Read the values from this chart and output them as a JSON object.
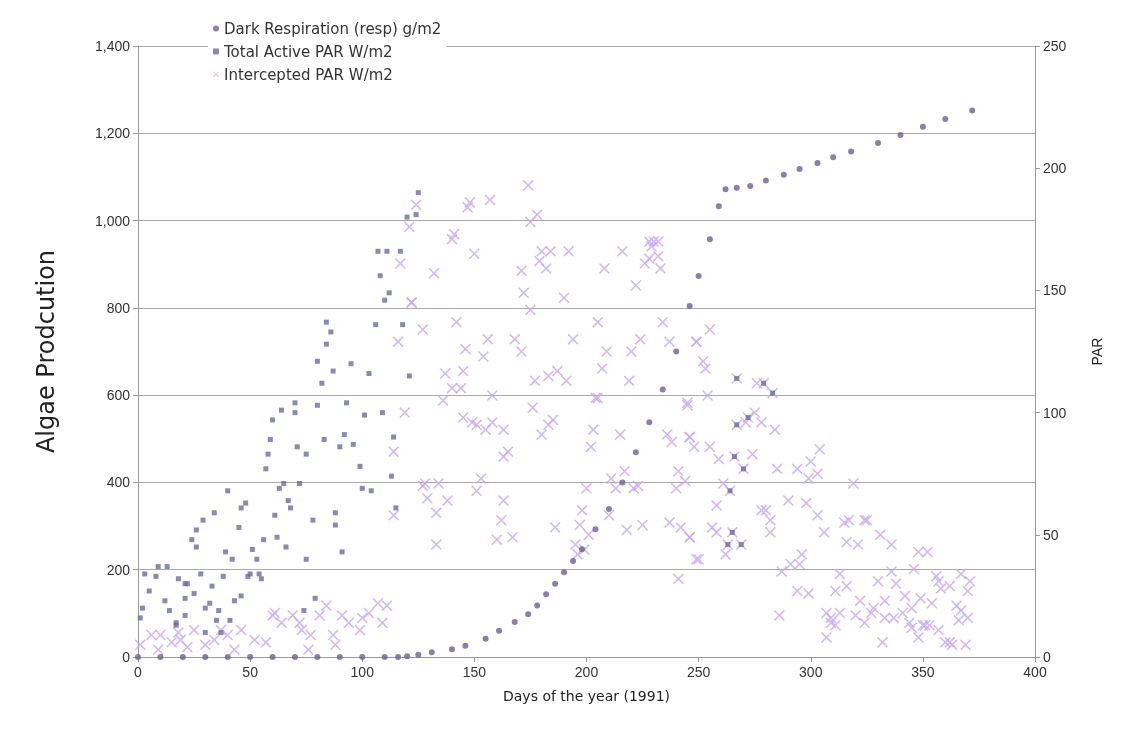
{
  "chart_data": {
    "type": "scatter",
    "xlabel": "Days of the year (1991)",
    "ylabel": "Algae Prodcution",
    "y2label": "PAR",
    "xlim": [
      0,
      400
    ],
    "xticks": [
      0,
      50,
      100,
      150,
      200,
      250,
      300,
      350,
      400
    ],
    "ylim": [
      0,
      1400
    ],
    "yticks": [
      0,
      200,
      400,
      600,
      800,
      {
        "value": 1000,
        "label": "1,000"
      },
      {
        "value": 1200,
        "label": "1,200"
      },
      {
        "value": 1400,
        "label": "1,400"
      }
    ],
    "y2lim": [
      0,
      250
    ],
    "y2ticks": [
      0,
      50,
      100,
      150,
      200,
      250
    ],
    "grid": "y",
    "legend": "top left",
    "series": [
      {
        "name": "Dark Respiration (resp) g/m2",
        "color": "#6e5f93",
        "marker": "circle",
        "x": [
          0,
          10,
          20,
          30,
          40,
          50,
          60,
          70,
          80,
          90,
          100,
          110,
          116,
          120,
          125,
          131,
          140,
          146,
          155,
          161,
          168,
          174,
          178,
          182,
          186,
          190,
          194,
          198,
          204,
          210,
          216,
          222,
          228,
          234,
          240,
          246,
          250,
          255,
          259,
          262,
          267,
          273,
          280,
          288,
          295,
          303,
          310,
          318,
          330,
          340,
          350,
          360,
          372
        ],
        "values": [
          0,
          0,
          0,
          0,
          0,
          0,
          0,
          0,
          0,
          0,
          0,
          0,
          0,
          2,
          5,
          11,
          18,
          26,
          42,
          60,
          80,
          98,
          118,
          144,
          168,
          194,
          220,
          247,
          293,
          339,
          400,
          469,
          538,
          613,
          700,
          804,
          873,
          957,
          1033,
          1072,
          1075,
          1079,
          1092,
          1105,
          1118,
          1132,
          1145,
          1158,
          1178,
          1196,
          1215,
          1233,
          1252
        ]
      },
      {
        "name": "Total Active PAR W/m2",
        "color": "#6b6b9f",
        "marker": "square",
        "axis": "y2",
        "x": [
          125,
          120,
          124,
          107,
          111,
          117,
          108,
          110,
          112,
          84,
          86,
          84,
          80,
          87,
          82,
          106,
          118,
          95,
          103,
          121,
          70,
          64,
          60,
          80,
          93,
          109,
          101,
          59,
          58,
          57,
          70,
          83,
          92,
          90,
          96,
          71,
          75,
          99,
          114,
          113,
          40,
          65,
          63,
          72,
          100,
          104,
          34,
          29,
          26,
          24,
          26,
          48,
          46,
          45,
          67,
          68,
          61,
          56,
          62,
          66,
          51,
          53,
          39,
          42,
          78,
          88,
          88,
          91,
          75,
          115,
          3,
          8,
          9,
          13,
          5,
          2,
          1,
          12,
          14,
          18,
          21,
          22,
          25,
          21,
          28,
          33,
          38,
          32,
          30,
          36,
          35,
          21,
          17,
          17,
          43,
          46,
          49,
          50,
          54,
          55,
          74,
          79,
          41,
          30,
          37,
          267,
          279,
          283,
          267,
          272,
          266,
          270,
          264,
          265,
          263,
          269
        ],
        "values": [
          190,
          180,
          181,
          166,
          166,
          166,
          156,
          146,
          149,
          137,
          133,
          128,
          121,
          117,
          112,
          136,
          136,
          120,
          116,
          115,
          104,
          101,
          97,
          103,
          104,
          100,
          99,
          89,
          83,
          77,
          100,
          89,
          91,
          86,
          87,
          86,
          83,
          78,
          90,
          74,
          68,
          71,
          69,
          71,
          69,
          68,
          59,
          56,
          52,
          48,
          45,
          63,
          61,
          53,
          64,
          61,
          58,
          48,
          49,
          45,
          44,
          40,
          43,
          40,
          56,
          59,
          54,
          43,
          40,
          61,
          34,
          33,
          37,
          37,
          27,
          20,
          16,
          23,
          19,
          32,
          30,
          30,
          26,
          24,
          34,
          29,
          33,
          22,
          20,
          19,
          15,
          17,
          14,
          13,
          23,
          25,
          33,
          34,
          34,
          32,
          19,
          24,
          15,
          10,
          10,
          114,
          112,
          108,
          95,
          98,
          82,
          77,
          68,
          51,
          46,
          46
        ]
      },
      {
        "name": "Intercepted PAR W/m2",
        "color": "#c7a6f2",
        "marker": "cross",
        "axis": "y2",
        "x": [
          1,
          6,
          10,
          15,
          19,
          25,
          30,
          34,
          40,
          46,
          52,
          57,
          60,
          64,
          69,
          73,
          76,
          77,
          81,
          84,
          87,
          91,
          94,
          99,
          100,
          103,
          107,
          111,
          109,
          88,
          72,
          43,
          22,
          9,
          61,
          37,
          18,
          116,
          119,
          114,
          114,
          122,
          117,
          121,
          124,
          127,
          127,
          174,
          147,
          148,
          157,
          178,
          175,
          141,
          140,
          150,
          180,
          184,
          192,
          179,
          182,
          171,
          172,
          190,
          175,
          132,
          122,
          216,
          208,
          222,
          228,
          230,
          232,
          229,
          228,
          226,
          232,
          233,
          142,
          205,
          234,
          156,
          146,
          154,
          168,
          171,
          194,
          209,
          220,
          224,
          237,
          207,
          219,
          177,
          183,
          187,
          191,
          137,
          145,
          140,
          144,
          136,
          158,
          176,
          204,
          205,
          145,
          149,
          151,
          155,
          158,
          163,
          180,
          183,
          185,
          203,
          202,
          215,
          236,
          238,
          245,
          246,
          249,
          165,
          163,
          153,
          217,
          211,
          213,
          223,
          221,
          200,
          151,
          128,
          134,
          129,
          138,
          133,
          163,
          162,
          167,
          160,
          133,
          186,
          198,
          197,
          195,
          201,
          210,
          218,
          225,
          237,
          242,
          246,
          241,
          240,
          244,
          241,
          249,
          196,
          199,
          255,
          249,
          252,
          253,
          254,
          245,
          267,
          276,
          279,
          283,
          275,
          272,
          271,
          267,
          278,
          284,
          246,
          248,
          255,
          259,
          266,
          274,
          270,
          304,
          285,
          294,
          300,
          299,
          303,
          261,
          319,
          264,
          258,
          290,
          298,
          278,
          280,
          282,
          303,
          282,
          306,
          315,
          317,
          324,
          325,
          256,
          258,
          246,
          265,
          263,
          269,
          262,
          316,
          321,
          331,
          336,
          348,
          352,
          250,
          296,
          287,
          291,
          295,
          313,
          336,
          346,
          330,
          338,
          356,
          357,
          367,
          371,
          358,
          362,
          370,
          294,
          299,
          311,
          316,
          322,
          333,
          342,
          349,
          354,
          345,
          365,
          367,
          286,
          307,
          313,
          320,
          328,
          327,
          333,
          337,
          341,
          309,
          324,
          311,
          309,
          344,
          345,
          350,
          351,
          353,
          366,
          370,
          357,
          307,
          332,
          348,
          360,
          362,
          363,
          369
        ],
        "values": [
          5,
          9,
          9,
          6,
          7,
          11,
          5,
          7,
          9,
          11,
          7,
          6,
          17,
          14,
          17,
          11,
          3,
          9,
          17,
          21,
          9,
          17,
          14,
          11,
          16,
          18,
          22,
          21,
          14,
          5,
          14,
          3,
          4,
          3,
          18,
          11,
          10,
          129,
          100,
          84,
          58,
          145,
          161,
          176,
          185,
          70,
          134,
          193,
          184,
          186,
          187,
          181,
          178,
          173,
          171,
          165,
          166,
          166,
          166,
          162,
          159,
          158,
          149,
          147,
          142,
          157,
          145,
          166,
          159,
          152,
          170,
          170,
          170,
          168,
          163,
          161,
          164,
          159,
          137,
          137,
          137,
          130,
          126,
          123,
          130,
          125,
          130,
          125,
          125,
          130,
          129,
          118,
          113,
          113,
          115,
          117,
          113,
          116,
          117,
          110,
          110,
          105,
          107,
          102,
          106,
          106,
          98,
          96,
          95,
          93,
          96,
          93,
          91,
          95,
          97,
          93,
          86,
          91,
          91,
          88,
          104,
          90,
          129,
          84,
          82,
          73,
          76,
          73,
          69,
          70,
          69,
          69,
          68,
          71,
          71,
          65,
          64,
          59,
          64,
          56,
          49,
          48,
          46,
          53,
          60,
          54,
          46,
          50,
          58,
          52,
          54,
          55,
          53,
          49,
          76,
          69,
          72,
          32,
          40,
          42,
          44,
          134,
          129,
          121,
          118,
          107,
          103,
          114,
          112,
          112,
          108,
          100,
          98,
          96,
          95,
          96,
          93,
          90,
          86,
          86,
          81,
          82,
          83,
          77,
          85,
          77,
          77,
          80,
          73,
          75,
          71,
          71,
          68,
          62,
          64,
          63,
          60,
          60,
          56,
          58,
          51,
          51,
          55,
          56,
          56,
          56,
          53,
          51,
          49,
          51,
          46,
          46,
          42,
          47,
          46,
          50,
          46,
          43,
          43,
          40,
          42,
          35,
          38,
          38,
          34,
          35,
          36,
          31,
          30,
          33,
          31,
          34,
          31,
          28,
          29,
          27,
          27,
          26,
          27,
          29,
          23,
          23,
          25,
          24,
          22,
          20,
          21,
          19,
          17,
          18,
          18,
          17,
          20,
          18,
          16,
          16,
          18,
          16,
          14,
          13,
          14,
          14,
          12,
          13,
          13,
          13,
          15,
          16,
          11,
          8,
          6,
          8,
          6,
          6,
          5,
          5
        ]
      }
    ]
  }
}
